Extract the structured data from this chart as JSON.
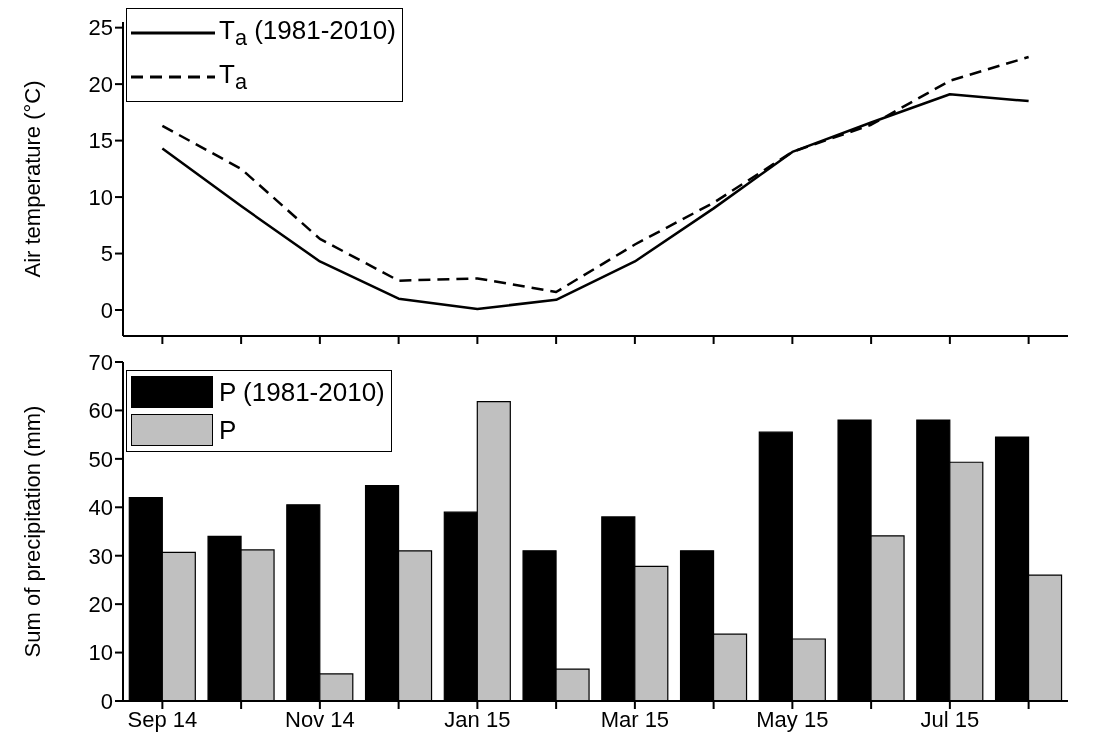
{
  "chart_data": [
    {
      "type": "line",
      "ylabel": "Air temperature (°C)",
      "categories": [
        null,
        null,
        null,
        null,
        null,
        null,
        null,
        null,
        null,
        null,
        null,
        null
      ],
      "ylim": [
        -2.3,
        25.5
      ],
      "yticks": [
        0,
        5,
        10,
        15,
        20,
        25
      ],
      "tick_labels": "y",
      "legend": "top left",
      "marker": "none",
      "series": [
        {
          "name": "T$_{a}$ (1981-2010)",
          "color": "#000000",
          "line_style": "solid",
          "values": [
            14.3,
            9.2,
            4.3,
            1.0,
            0.1,
            0.9,
            4.3,
            9.0,
            14.0,
            16.6,
            19.1,
            18.5
          ]
        },
        {
          "name": "T$_{a}$",
          "color": "#000000",
          "line_style": "dashed",
          "values": [
            16.3,
            12.5,
            6.3,
            2.6,
            2.8,
            1.6,
            5.8,
            9.5,
            14.0,
            16.4,
            20.3,
            22.4
          ]
        }
      ]
    },
    {
      "type": "bar",
      "ylabel": "Sum of precipitation (mm)",
      "categories": [
        "Sep 14",
        null,
        "Nov 14",
        null,
        "Jan 15",
        null,
        "Mar 15",
        null,
        "May 15",
        null,
        "Jul 15",
        null
      ],
      "ylim": [
        0,
        70
      ],
      "yticks": [
        0,
        10,
        20,
        30,
        40,
        50,
        60,
        70
      ],
      "legend": "top left",
      "series": [
        {
          "name": "P (1981-2010)",
          "color": "#000000",
          "values": [
            42,
            34,
            40.5,
            44.5,
            39,
            31,
            38,
            31,
            55.5,
            58,
            58,
            54.5
          ]
        },
        {
          "name": "P",
          "color": "#c0c0c0",
          "values": [
            30.7,
            31.2,
            5.6,
            31,
            61.8,
            6.6,
            27.8,
            13.8,
            12.8,
            34.1,
            49.3,
            26
          ]
        }
      ]
    }
  ]
}
